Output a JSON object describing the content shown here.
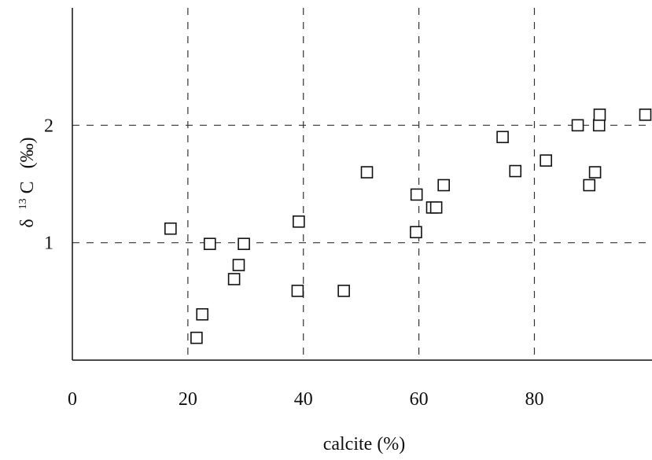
{
  "chart_data": {
    "type": "scatter",
    "title": "",
    "xlabel": "calcite (%)",
    "ylabel": "δ ¹³C (‰)",
    "ylabel_parts": {
      "delta": "δ",
      "isotope": "13",
      "element": "C",
      "unit": "(‰)"
    },
    "xlim": [
      0,
      100
    ],
    "ylim": [
      0,
      3
    ],
    "grid": true,
    "grid_style": "dashed",
    "marker": "open-square",
    "x_ticks": [
      {
        "value": 0,
        "label": "0"
      },
      {
        "value": 20,
        "label": "20"
      },
      {
        "value": 40,
        "label": "40"
      },
      {
        "value": 60,
        "label": "60"
      },
      {
        "value": 80,
        "label": "80"
      }
    ],
    "y_ticks": [
      {
        "value": 1,
        "label": "1"
      },
      {
        "value": 2,
        "label": "2"
      }
    ],
    "points": [
      {
        "x": 17.0,
        "y": 1.12
      },
      {
        "x": 21.5,
        "y": 0.19
      },
      {
        "x": 22.5,
        "y": 0.39
      },
      {
        "x": 23.8,
        "y": 0.99
      },
      {
        "x": 28.0,
        "y": 0.69
      },
      {
        "x": 28.8,
        "y": 0.81
      },
      {
        "x": 29.7,
        "y": 0.99
      },
      {
        "x": 39.0,
        "y": 0.59
      },
      {
        "x": 39.2,
        "y": 1.18
      },
      {
        "x": 47.0,
        "y": 0.59
      },
      {
        "x": 51.0,
        "y": 1.6
      },
      {
        "x": 59.5,
        "y": 1.09
      },
      {
        "x": 59.6,
        "y": 1.41
      },
      {
        "x": 62.3,
        "y": 1.3
      },
      {
        "x": 63.0,
        "y": 1.3
      },
      {
        "x": 64.3,
        "y": 1.49
      },
      {
        "x": 74.5,
        "y": 1.9
      },
      {
        "x": 76.7,
        "y": 1.61
      },
      {
        "x": 82.0,
        "y": 1.7
      },
      {
        "x": 87.5,
        "y": 2.0
      },
      {
        "x": 89.5,
        "y": 1.49
      },
      {
        "x": 90.5,
        "y": 1.6
      },
      {
        "x": 91.2,
        "y": 2.0
      },
      {
        "x": 91.3,
        "y": 2.09
      },
      {
        "x": 100.0,
        "y": 2.09
      }
    ]
  }
}
